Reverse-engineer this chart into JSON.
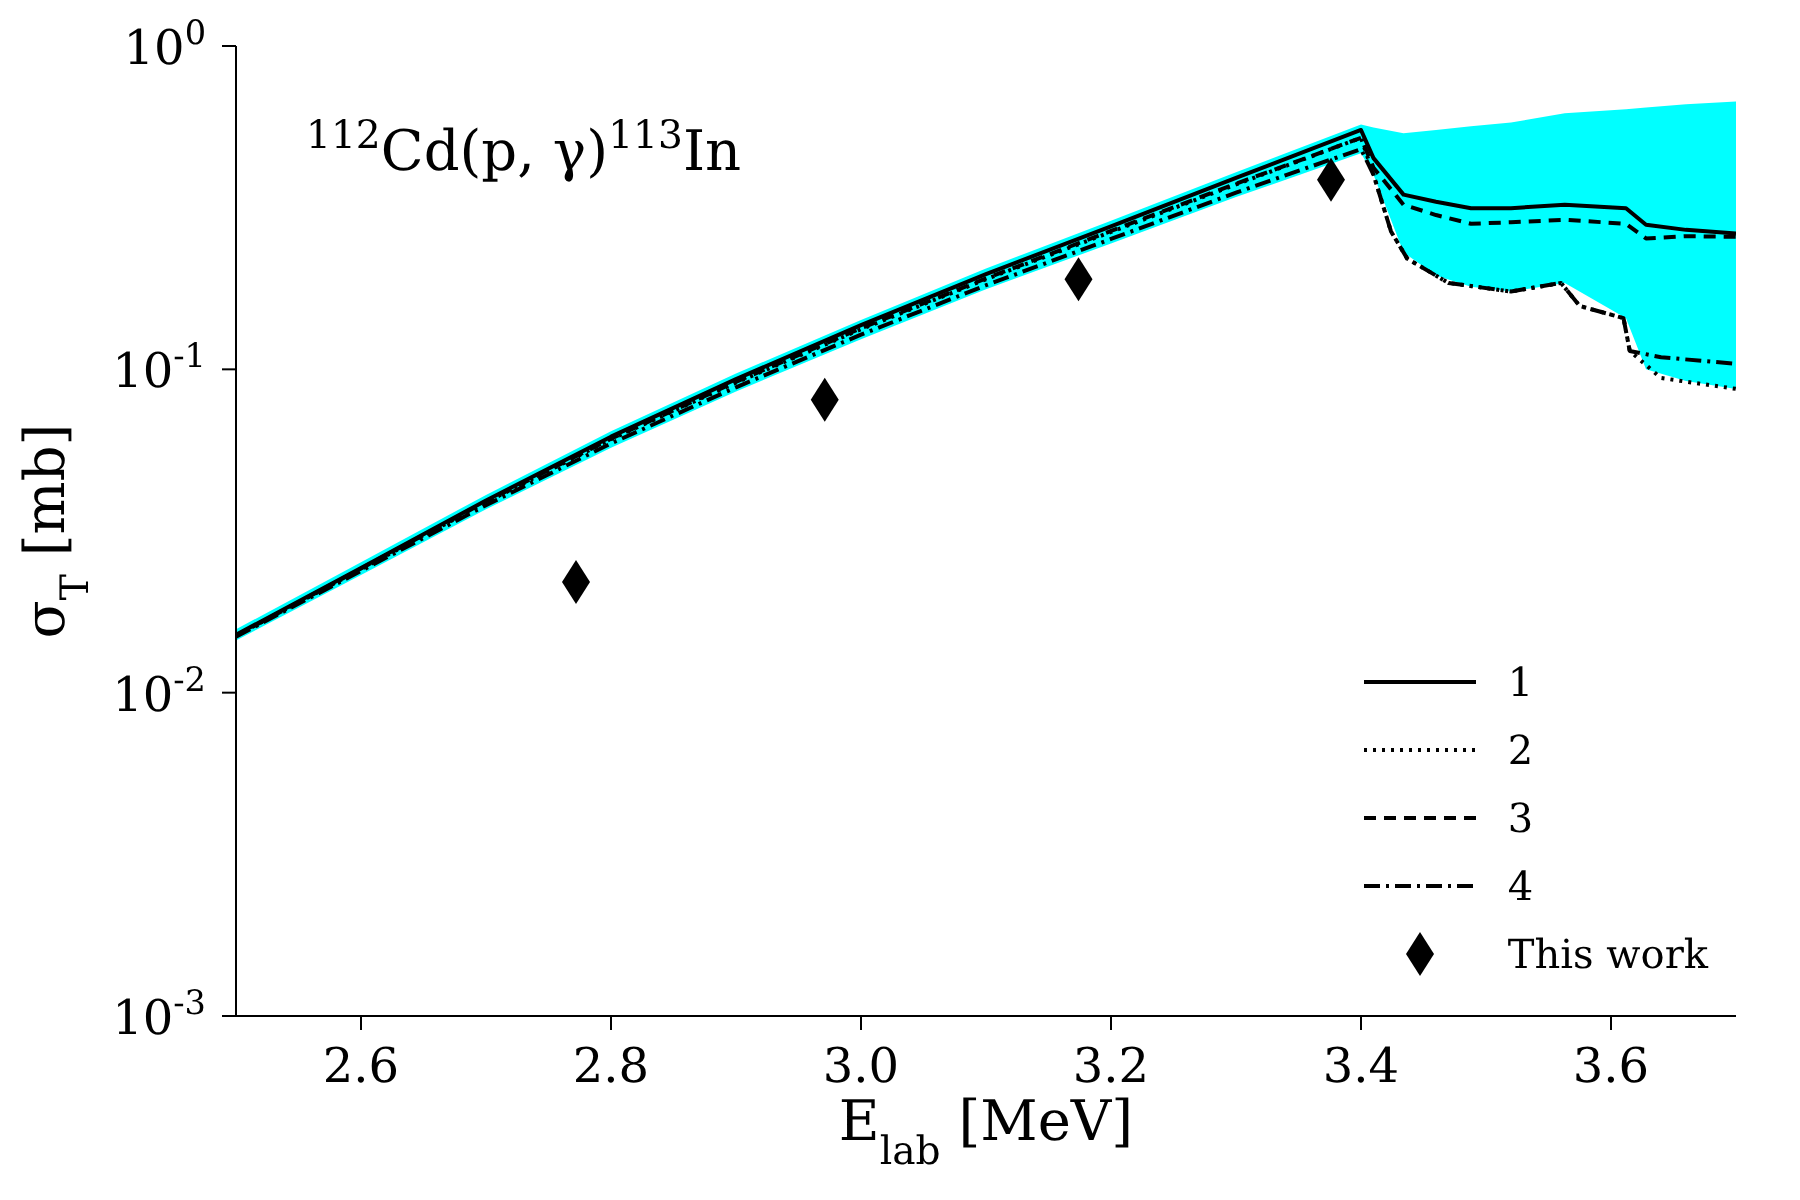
{
  "chart_data": {
    "type": "line",
    "xlabel": "E$_{lab}$ [MeV]",
    "ylabel": "σ$_{T}$ [mb]",
    "annotations": [
      "$^{112}$Cd(p, γ)$^{113}$In"
    ],
    "xlim": [
      2.5,
      3.7
    ],
    "xticks": [
      2.6,
      2.8,
      {
        "value": 3.0,
        "label": "3.0"
      },
      3.2,
      3.4,
      3.6
    ],
    "ylim": [
      0.001,
      1
    ],
    "yticks": [
      {
        "value": 0.001,
        "label": "10$^{-3}$"
      },
      {
        "value": 0.01,
        "label": "10$^{-2}$"
      },
      {
        "value": 0.1,
        "label": "10$^{-1}$"
      },
      {
        "value": 1,
        "label": "10$^{0}$"
      }
    ],
    "log": "y",
    "grid": false,
    "legend": "bottom right",
    "series": [
      {
        "name": "1",
        "color": "#000000",
        "line_style": "solid",
        "x": [
          2.5,
          2.6,
          2.7,
          2.8,
          2.9,
          3.0,
          3.1,
          3.2,
          3.3,
          3.4,
          3.41,
          3.434,
          3.46,
          3.488,
          3.52,
          3.563,
          3.612,
          3.628,
          3.66,
          3.7
        ],
        "values": [
          0.0151,
          0.0243,
          0.0393,
          0.0619,
          0.0933,
          0.137,
          0.197,
          0.277,
          0.391,
          0.55,
          0.45,
          0.347,
          0.33,
          0.315,
          0.315,
          0.323,
          0.315,
          0.28,
          0.27,
          0.263
        ],
        "lower": [
          0.0145,
          0.0231,
          0.0369,
          0.0572,
          0.0854,
          0.124,
          0.177,
          0.245,
          0.341,
          0.466,
          0.4,
          0.23,
          0.195,
          0.18,
          0.174,
          0.185,
          0.144,
          0.1,
          0.092,
          0.087
        ],
        "upper": [
          0.0157,
          0.0253,
          0.0409,
          0.0644,
          0.097,
          0.142,
          0.205,
          0.288,
          0.407,
          0.572,
          0.56,
          0.537,
          0.55,
          0.565,
          0.58,
          0.62,
          0.637,
          0.645,
          0.66,
          0.673
        ]
      },
      {
        "name": "2",
        "color": "#000000",
        "line_style": "dotted",
        "x": [
          2.5,
          2.6,
          2.7,
          2.8,
          2.9,
          3.0,
          3.1,
          3.2,
          3.3,
          3.4,
          3.41,
          3.424,
          3.437,
          3.47,
          3.52,
          3.56,
          3.575,
          3.61,
          3.615,
          3.64,
          3.7
        ],
        "values": [
          0.015,
          0.0241,
          0.0388,
          0.0608,
          0.091,
          0.133,
          0.19,
          0.266,
          0.373,
          0.52,
          0.4,
          0.267,
          0.22,
          0.185,
          0.174,
          0.185,
          0.157,
          0.144,
          0.114,
          0.094,
          0.087
        ]
      },
      {
        "name": "3",
        "color": "#000000",
        "line_style": "dashed",
        "x": [
          2.5,
          2.6,
          2.7,
          2.8,
          2.9,
          3.0,
          3.1,
          3.2,
          3.3,
          3.4,
          3.41,
          3.434,
          3.46,
          3.488,
          3.52,
          3.563,
          3.612,
          3.628,
          3.66,
          3.7
        ],
        "values": [
          0.015,
          0.0242,
          0.039,
          0.061,
          0.0915,
          0.134,
          0.191,
          0.268,
          0.375,
          0.52,
          0.42,
          0.323,
          0.3,
          0.282,
          0.285,
          0.29,
          0.282,
          0.254,
          0.258,
          0.257
        ]
      },
      {
        "name": "4",
        "color": "#000000",
        "line_style": "dashdot",
        "x": [
          2.5,
          2.6,
          2.7,
          2.8,
          2.9,
          3.0,
          3.1,
          3.2,
          3.3,
          3.4,
          3.41,
          3.424,
          3.437,
          3.47,
          3.52,
          3.56,
          3.575,
          3.61,
          3.615,
          3.64,
          3.7
        ],
        "values": [
          0.0149,
          0.0238,
          0.038,
          0.059,
          0.088,
          0.128,
          0.182,
          0.253,
          0.352,
          0.48,
          0.4,
          0.267,
          0.22,
          0.185,
          0.174,
          0.185,
          0.157,
          0.144,
          0.114,
          0.109,
          0.104
        ]
      },
      {
        "type": "scatter",
        "name": "This work",
        "color": "#000000",
        "marker": "diamond",
        "x": [
          2.772,
          2.971,
          3.174,
          3.376
        ],
        "values": [
          0.022,
          0.0805,
          0.19,
          0.386
        ]
      }
    ]
  }
}
